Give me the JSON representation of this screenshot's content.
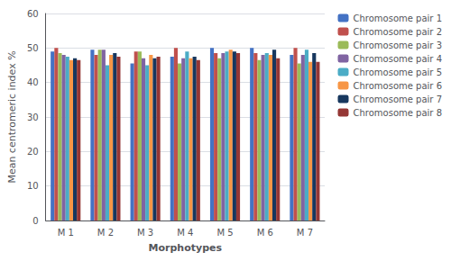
{
  "chart_data": {
    "type": "bar",
    "xlabel": "Morphotypes",
    "ylabel": "Mean centromeric index %",
    "categories": [
      "M 1",
      "M 2",
      "M 3",
      "M 4",
      "M 5",
      "M 6",
      "M 7"
    ],
    "series": [
      {
        "name": "Chromosome pair 1",
        "color": "#4472C4",
        "values": [
          49.0,
          49.5,
          45.5,
          47.5,
          50.0,
          50.0,
          48.0
        ]
      },
      {
        "name": "Chromosome pair 2",
        "color": "#C0504D",
        "values": [
          50.0,
          48.0,
          49.0,
          50.0,
          48.5,
          48.5,
          50.0
        ]
      },
      {
        "name": "Chromosome pair 3",
        "color": "#9BBB59",
        "values": [
          48.5,
          49.5,
          49.0,
          45.5,
          47.0,
          46.5,
          45.5
        ]
      },
      {
        "name": "Chromosome pair 4",
        "color": "#8064A2",
        "values": [
          48.0,
          49.5,
          47.0,
          47.0,
          48.5,
          48.0,
          48.0
        ]
      },
      {
        "name": "Chromosome pair 5",
        "color": "#4BACC6",
        "values": [
          47.5,
          45.0,
          45.0,
          49.0,
          49.0,
          48.5,
          49.5
        ]
      },
      {
        "name": "Chromosome pair 6",
        "color": "#F79646",
        "values": [
          46.5,
          48.0,
          48.0,
          47.0,
          49.5,
          48.0,
          46.0
        ]
      },
      {
        "name": "Chromosome pair 7",
        "color": "#17375E",
        "values": [
          47.0,
          48.5,
          47.0,
          47.5,
          49.0,
          49.5,
          48.5
        ]
      },
      {
        "name": "Chromosome pair 8",
        "color": "#953735",
        "values": [
          46.5,
          47.5,
          47.5,
          46.5,
          48.5,
          47.0,
          46.0
        ]
      }
    ],
    "ylim": [
      0,
      60
    ],
    "yticks": [
      0,
      10,
      20,
      30,
      40,
      50,
      60
    ],
    "grid": true,
    "legend": "upper right"
  }
}
